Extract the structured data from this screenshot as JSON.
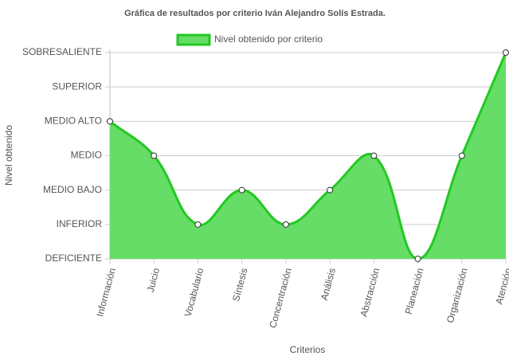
{
  "chart_data": {
    "type": "line",
    "title": "Gráfica de resultados por criterio Iván Alejandro Solís Estrada.",
    "legend": "top",
    "x_label": "Criterios",
    "y_label": "Nivel obtenido",
    "categories": [
      "Información",
      "Juicio",
      "Vocabulario",
      "Síntesis",
      "Concentración",
      "Análisis",
      "Abstracción",
      "Planeación",
      "Organización",
      "Atención"
    ],
    "series": [
      {
        "name": "Nivel obtenido por criterio",
        "color": "#22c922",
        "fill": "#66dd66",
        "values": [
          4,
          3,
          1,
          2,
          1,
          2,
          3,
          0,
          3,
          6
        ]
      }
    ],
    "ylim": [
      0,
      6
    ],
    "yticks": [
      {
        "value": 0,
        "label": "DEFICIENTE"
      },
      {
        "value": 1,
        "label": "INFERIOR"
      },
      {
        "value": 2,
        "label": "MEDIO BAJO"
      },
      {
        "value": 3,
        "label": "MEDIO"
      },
      {
        "value": 4,
        "label": "MEDIO ALTO"
      },
      {
        "value": 5,
        "label": "SUPERIOR"
      },
      {
        "value": 6,
        "label": "SOBRESALIENTE"
      }
    ],
    "grid": true
  }
}
